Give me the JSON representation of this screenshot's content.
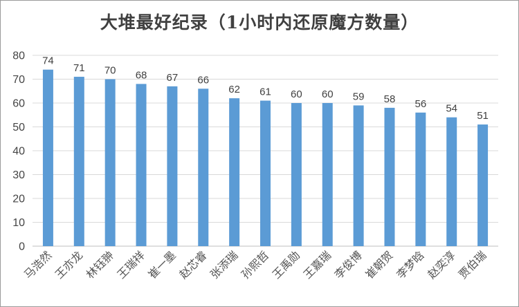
{
  "chart_data": {
    "type": "bar",
    "title": "大堆最好纪录（1小时内还原魔方数量）",
    "xlabel": "",
    "ylabel": "",
    "ylim": [
      0,
      80
    ],
    "yticks": [
      0,
      10,
      20,
      30,
      40,
      50,
      60,
      70,
      80
    ],
    "grid": true,
    "legend": "none",
    "data_labels": true,
    "bar_color": "#5b9bd5",
    "categories": [
      "马浩然",
      "王亦龙",
      "林钰翀",
      "王瑞祥",
      "崔一墨",
      "赵芯睿",
      "张添瑞",
      "孙熙哲",
      "王禹勋",
      "王嘉瑞",
      "李俊博",
      "崔朝贺",
      "李梦晗",
      "赵奕淳",
      "贾伯瑞"
    ],
    "values": [
      74,
      71,
      70,
      68,
      67,
      66,
      62,
      61,
      60,
      60,
      59,
      58,
      56,
      54,
      51
    ]
  }
}
